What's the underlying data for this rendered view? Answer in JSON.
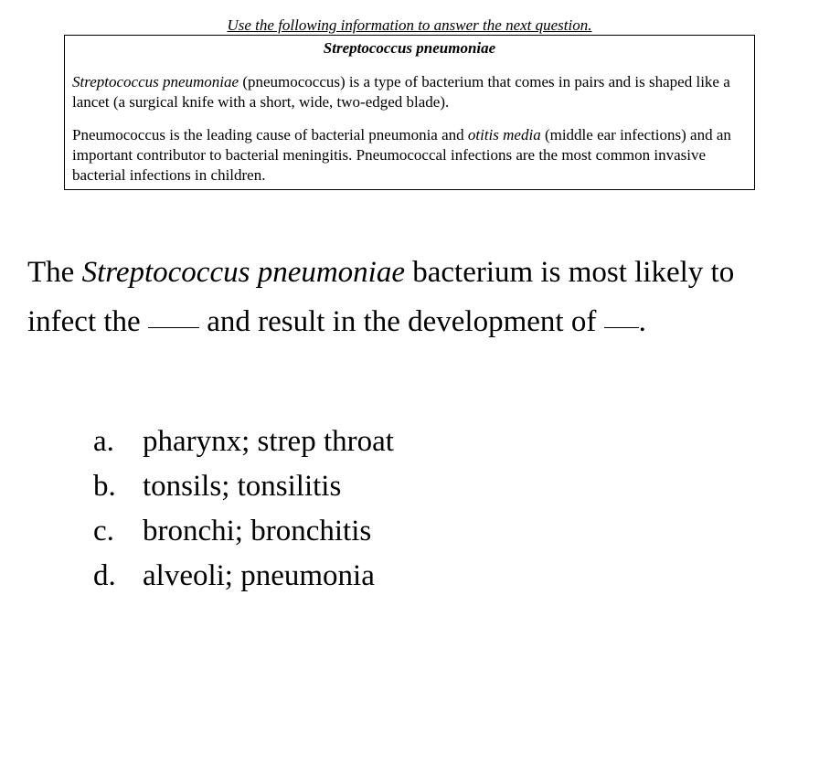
{
  "instruction": "Use the following information to answer the next question.",
  "box": {
    "title": "Streptococcus pneumoniae",
    "p1_pre": "Streptococcus pneumoniae",
    "p1_rest": " (pneumococcus) is a type of bacterium that comes in pairs and is shaped like a lancet (a surgical knife with a short, wide, two-edged blade).",
    "p2_pre": "Pneumococcus is the leading cause of bacterial pneumonia and ",
    "p2_italic": "otitis media",
    "p2_rest": " (middle ear infections) and an important contributor to bacterial meningitis. Pneumococcal infections are the most common invasive bacterial infections in children."
  },
  "question": {
    "q1_pre": "The ",
    "q1_italic": "Streptococcus pneumoniae",
    "q1_mid1": " bacterium is most likely to infect the ",
    "q1_mid2": " and result in the development of ",
    "q1_end": "."
  },
  "options": {
    "a_letter": "a.",
    "a_text": "pharynx; strep throat",
    "b_letter": "b.",
    "b_text": " tonsils; tonsilitis",
    "c_letter": "c.",
    "c_text": "bronchi; bronchitis",
    "d_letter": "d.",
    "d_text": " alveoli; pneumonia"
  },
  "colors": {
    "background": "#ffffff",
    "text": "#000000",
    "border": "#000000"
  },
  "typography": {
    "font_family": "Times New Roman",
    "instruction_fontsize": 17,
    "box_fontsize": 17,
    "question_fontsize": 33,
    "options_fontsize": 33
  }
}
